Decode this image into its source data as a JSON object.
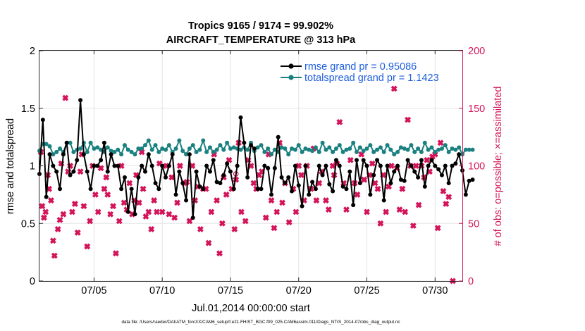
{
  "title_line1": "Tropics 9165 / 9174 = 99.902%",
  "title_line2": "AIRCRAFT_TEMPERATURE @ 313 hPa",
  "footer": "data file: /Users/raeder/DAI/ATM_forcXX/CAM6_setup/f.e21.FHIST_BGC.f09_025.CAM6assim.011/Diags_NTrS_2014-07/obs_diag_output.nc",
  "colors": {
    "rmse": "#000000",
    "spread": "#1a8080",
    "obs": "#d4145a",
    "legend_text": "#1f5fe0",
    "grid": "#e4e4e4"
  },
  "chart_data": {
    "type": "line",
    "title": "Tropics 9165 / 9174 = 99.902%",
    "subtitle": "AIRCRAFT_TEMPERATURE @ 313 hPa",
    "xlabel": "Jul.01,2014 00:00:00 start",
    "ylabel": "rmse and totalspread",
    "y2label": "# of obs: o=possible; ×=assimilated",
    "xlim": [
      1,
      32
    ],
    "ylim": [
      0,
      2
    ],
    "y2lim": [
      0,
      200
    ],
    "xticks": [
      5,
      10,
      15,
      20,
      25,
      30
    ],
    "xtick_labels": [
      "07/05",
      "07/10",
      "07/15",
      "07/20",
      "07/25",
      "07/30"
    ],
    "yticks": [
      0,
      0.5,
      1,
      1.5,
      2
    ],
    "ytick_labels": [
      "0",
      "0.5",
      "1",
      "1.5",
      "2"
    ],
    "y2ticks": [
      0,
      50,
      100,
      150,
      200
    ],
    "y2tick_labels": [
      "0",
      "50",
      "100",
      "150",
      "200"
    ],
    "grid": true,
    "legend_position": "top-right",
    "x_start": 1,
    "x_step": 0.25,
    "series": [
      {
        "name": "rmse grand pr = 0.95086",
        "axis": "left",
        "values": [
          0.93,
          1.4,
          0.73,
          1.1,
          1.0,
          0.95,
          0.8,
          1.1,
          1.2,
          0.92,
          0.95,
          1.05,
          1.57,
          1.1,
          0.95,
          0.8,
          1.0,
          1.0,
          1.05,
          1.2,
          0.95,
          1.1,
          1.0,
          1.0,
          0.8,
          0.9,
          0.6,
          0.8,
          0.58,
          0.9,
          1.0,
          0.95,
          1.1,
          1.0,
          0.85,
          0.8,
          1.0,
          0.9,
          1.0,
          1.1,
          0.75,
          0.95,
          0.85,
          0.7,
          1.1,
          0.55,
          0.95,
          0.82,
          0.8,
          1.0,
          0.95,
          1.05,
          0.86,
          0.85,
          0.92,
          1.02,
          0.95,
          0.8,
          1.0,
          1.42,
          1.2,
          0.9,
          1.18,
          1.15,
          0.8,
          0.8,
          1.0,
          0.98,
          0.75,
          0.98,
          1.25,
          0.9,
          0.85,
          0.9,
          0.78,
          1.0,
          0.83,
          0.65,
          1.0,
          0.75,
          0.86,
          0.8,
          1.0,
          0.92,
          1.0,
          0.84,
          0.78,
          1.05,
          1.0,
          0.82,
          0.8,
          0.95,
          0.66,
          1.05,
          0.85,
          1.05,
          1.0,
          0.75,
          0.92,
          1.05,
          1.0,
          0.7,
          1.0,
          0.85,
          0.95,
          1.0,
          0.88,
          0.87,
          1.05,
          1.0,
          0.95,
          0.9,
          1.05,
          0.82,
          1.0,
          1.05,
          1.0,
          0.97,
          0.92,
          1.0,
          0.85,
          1.0,
          1.02,
          1.1,
          0.96,
          0.75,
          0.87,
          0.88
        ]
      },
      {
        "name": "totalspread grand pr = 1.1423",
        "axis": "left",
        "values": [
          1.13,
          1.19,
          1.19,
          1.17,
          1.1,
          1.12,
          1.15,
          1.12,
          1.2,
          1.2,
          1.12,
          1.14,
          1.15,
          1.2,
          1.12,
          1.2,
          1.15,
          1.16,
          1.14,
          1.12,
          1.16,
          1.13,
          1.12,
          1.14,
          1.1,
          1.18,
          1.14,
          1.12,
          1.1,
          1.15,
          1.15,
          1.18,
          1.22,
          1.14,
          1.18,
          1.12,
          1.15,
          1.14,
          1.18,
          1.12,
          1.15,
          1.22,
          1.13,
          1.1,
          1.15,
          1.18,
          1.12,
          1.14,
          1.22,
          1.12,
          1.16,
          1.12,
          1.14,
          1.18,
          1.14,
          1.2,
          1.15,
          1.16,
          1.15,
          1.14,
          1.16,
          1.14,
          1.2,
          1.13,
          1.16,
          1.18,
          1.12,
          1.15,
          1.1,
          1.14,
          1.12,
          1.16,
          1.15,
          1.1,
          1.15,
          1.14,
          1.18,
          1.12,
          1.15,
          1.14,
          1.13,
          1.16,
          1.12,
          1.2,
          1.14,
          1.16,
          1.12,
          1.15,
          1.18,
          1.12,
          1.14,
          1.15,
          1.2,
          1.12,
          1.16,
          1.13,
          1.15,
          1.18,
          1.12,
          1.14,
          1.16,
          1.12,
          1.18,
          1.14,
          1.1,
          1.12,
          1.16,
          1.15,
          1.14,
          1.18,
          1.12,
          1.15,
          1.12,
          1.2,
          1.14,
          1.16,
          1.12,
          1.14,
          1.15,
          1.18,
          1.12,
          1.15,
          1.14,
          1.16,
          1.1,
          1.14,
          1.14,
          1.14
        ]
      }
    ],
    "obs_assimilated": {
      "name": "# of obs assimilated",
      "axis": "right",
      "points": [
        [
          1.1,
          112
        ],
        [
          1.2,
          65
        ],
        [
          1.33,
          55
        ],
        [
          1.45,
          60
        ],
        [
          1.6,
          92
        ],
        [
          1.7,
          80
        ],
        [
          1.85,
          70
        ],
        [
          2.0,
          35
        ],
        [
          2.1,
          22
        ],
        [
          2.35,
          45
        ],
        [
          2.5,
          53
        ],
        [
          2.6,
          102
        ],
        [
          2.75,
          58
        ],
        [
          2.9,
          159
        ],
        [
          3.1,
          95
        ],
        [
          3.25,
          100
        ],
        [
          3.4,
          60
        ],
        [
          3.6,
          67
        ],
        [
          3.8,
          42
        ],
        [
          4.0,
          95
        ],
        [
          4.1,
          110
        ],
        [
          4.25,
          65
        ],
        [
          4.5,
          30
        ],
        [
          4.7,
          52
        ],
        [
          4.9,
          100
        ],
        [
          5.1,
          75
        ],
        [
          5.3,
          60
        ],
        [
          5.5,
          98
        ],
        [
          5.75,
          80
        ],
        [
          5.9,
          90
        ],
        [
          6.0,
          75
        ],
        [
          6.2,
          58
        ],
        [
          6.4,
          65
        ],
        [
          6.6,
          24
        ],
        [
          6.85,
          52
        ],
        [
          7.0,
          100
        ],
        [
          7.2,
          68
        ],
        [
          7.4,
          62
        ],
        [
          7.6,
          85
        ],
        [
          7.8,
          58
        ],
        [
          7.95,
          70
        ],
        [
          8.1,
          92
        ],
        [
          8.3,
          68
        ],
        [
          8.5,
          112
        ],
        [
          8.6,
          80
        ],
        [
          8.8,
          56
        ],
        [
          9.0,
          60
        ],
        [
          9.2,
          45
        ],
        [
          9.4,
          70
        ],
        [
          9.6,
          60
        ],
        [
          9.8,
          102
        ],
        [
          10.0,
          60
        ],
        [
          10.3,
          100
        ],
        [
          10.5,
          58
        ],
        [
          10.7,
          90
        ],
        [
          10.9,
          55
        ],
        [
          11.1,
          68
        ],
        [
          11.3,
          100
        ],
        [
          11.6,
          85
        ],
        [
          11.8,
          86
        ],
        [
          12.0,
          52
        ],
        [
          12.2,
          100
        ],
        [
          12.4,
          70
        ],
        [
          12.6,
          82
        ],
        [
          12.8,
          45
        ],
        [
          13.0,
          80
        ],
        [
          13.2,
          80
        ],
        [
          13.4,
          33
        ],
        [
          13.6,
          60
        ],
        [
          13.8,
          110
        ],
        [
          14.0,
          70
        ],
        [
          14.2,
          24
        ],
        [
          14.4,
          50
        ],
        [
          14.5,
          90
        ],
        [
          14.7,
          75
        ],
        [
          14.9,
          105
        ],
        [
          15.1,
          80
        ],
        [
          15.3,
          45
        ],
        [
          15.4,
          88
        ],
        [
          15.6,
          120
        ],
        [
          15.8,
          60
        ],
        [
          16.1,
          52
        ],
        [
          16.3,
          105
        ],
        [
          16.5,
          100
        ],
        [
          16.7,
          85
        ],
        [
          16.9,
          80
        ],
        [
          17.1,
          92
        ],
        [
          17.3,
          95
        ],
        [
          17.6,
          55
        ],
        [
          17.8,
          110
        ],
        [
          18.0,
          70
        ],
        [
          18.2,
          46
        ],
        [
          18.4,
          60
        ],
        [
          18.6,
          120
        ],
        [
          18.8,
          68
        ],
        [
          19.0,
          85
        ],
        [
          19.3,
          51
        ],
        [
          19.6,
          80
        ],
        [
          19.8,
          60
        ],
        [
          20.0,
          100
        ],
        [
          20.2,
          92
        ],
        [
          20.4,
          70
        ],
        [
          20.6,
          100
        ],
        [
          20.9,
          80
        ],
        [
          21.1,
          115
        ],
        [
          21.3,
          70
        ],
        [
          21.5,
          85
        ],
        [
          21.7,
          95
        ],
        [
          22.0,
          70
        ],
        [
          22.2,
          62
        ],
        [
          22.5,
          100
        ],
        [
          22.6,
          92
        ],
        [
          22.8,
          102
        ],
        [
          23.0,
          138
        ],
        [
          23.3,
          85
        ],
        [
          23.5,
          62
        ],
        [
          23.8,
          105
        ],
        [
          24.1,
          85
        ],
        [
          24.3,
          75
        ],
        [
          24.6,
          110
        ],
        [
          24.8,
          88
        ],
        [
          25.0,
          60
        ],
        [
          25.2,
          92
        ],
        [
          25.4,
          102
        ],
        [
          25.6,
          85
        ],
        [
          25.8,
          80
        ],
        [
          26.0,
          50
        ],
        [
          26.2,
          92
        ],
        [
          26.4,
          60
        ],
        [
          26.6,
          82
        ],
        [
          26.8,
          100
        ],
        [
          27.0,
          167
        ],
        [
          27.2,
          98
        ],
        [
          27.4,
          62
        ],
        [
          27.6,
          80
        ],
        [
          27.8,
          60
        ],
        [
          28.0,
          140
        ],
        [
          28.2,
          100
        ],
        [
          28.4,
          48
        ],
        [
          28.6,
          100
        ],
        [
          28.8,
          66
        ],
        [
          29.0,
          100
        ],
        [
          29.2,
          90
        ],
        [
          29.4,
          105
        ],
        [
          29.6,
          95
        ],
        [
          29.8,
          108
        ],
        [
          30.0,
          110
        ],
        [
          30.2,
          46
        ],
        [
          30.4,
          120
        ],
        [
          30.6,
          78
        ],
        [
          30.8,
          67
        ],
        [
          31.0,
          73
        ],
        [
          31.3,
          0
        ]
      ]
    },
    "obs_possible": {
      "name": "# of obs possible",
      "axis": "right",
      "points": [
        [
          15.4,
          93
        ]
      ]
    }
  }
}
